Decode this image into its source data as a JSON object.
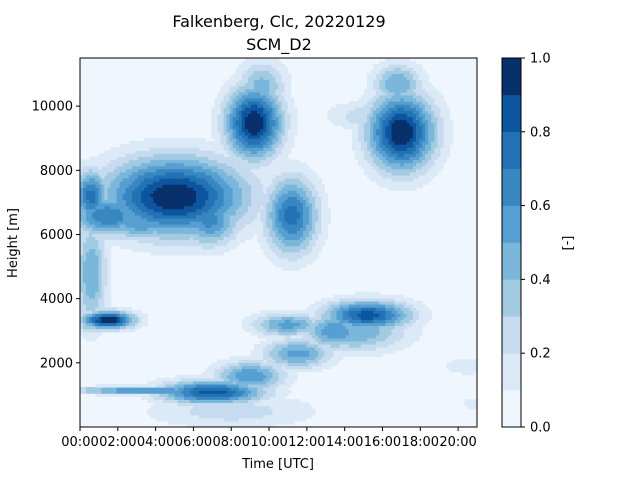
{
  "chart_data": {
    "type": "contour",
    "title": "Falkenberg, Clc, 20220129",
    "subtitle": "SCM_D2",
    "xlabel": "Time [UTC]",
    "ylabel": "Height [m]",
    "x_unit": "hour",
    "xlim": [
      0,
      21
    ],
    "ylim": [
      0,
      11500
    ],
    "x_ticks": [
      {
        "value": 0,
        "label": "00:00"
      },
      {
        "value": 2,
        "label": "02:00"
      },
      {
        "value": 4,
        "label": "04:00"
      },
      {
        "value": 6,
        "label": "06:00"
      },
      {
        "value": 8,
        "label": "08:00"
      },
      {
        "value": 10,
        "label": "10:00"
      },
      {
        "value": 12,
        "label": "12:00"
      },
      {
        "value": 14,
        "label": "14:00"
      },
      {
        "value": 16,
        "label": "16:00"
      },
      {
        "value": 18,
        "label": "18:00"
      },
      {
        "value": 20,
        "label": "20:00"
      }
    ],
    "y_ticks": [
      {
        "value": 2000,
        "label": "2000"
      },
      {
        "value": 4000,
        "label": "4000"
      },
      {
        "value": 6000,
        "label": "6000"
      },
      {
        "value": 8000,
        "label": "8000"
      },
      {
        "value": 10000,
        "label": "10000"
      }
    ],
    "colorbar": {
      "label": "[-]",
      "range": [
        0,
        1
      ],
      "levels": [
        0.0,
        0.1,
        0.2,
        0.3,
        0.4,
        0.5,
        0.6,
        0.7,
        0.8,
        0.9,
        1.0
      ],
      "colors": [
        "#f0f6fd",
        "#dce9f6",
        "#c6dbef",
        "#a2cbe2",
        "#7bb6db",
        "#569fd2",
        "#3887c0",
        "#2272b5",
        "#0c56a0",
        "#08306b"
      ],
      "ticks": [
        {
          "value": 0.0,
          "label": "0.0"
        },
        {
          "value": 0.2,
          "label": "0.2"
        },
        {
          "value": 0.4,
          "label": "0.4"
        },
        {
          "value": 0.6,
          "label": "0.6"
        },
        {
          "value": 0.8,
          "label": "0.8"
        },
        {
          "value": 1.0,
          "label": "1.0"
        }
      ]
    },
    "features": [
      {
        "kind": "blob",
        "t": 5.0,
        "z": 7200,
        "rt": 4.0,
        "rz": 1300,
        "peak": 1.0
      },
      {
        "kind": "blob",
        "t": 0.6,
        "z": 7200,
        "rt": 1.0,
        "rz": 900,
        "peak": 0.75
      },
      {
        "kind": "blob",
        "t": 1.5,
        "z": 6600,
        "rt": 2.2,
        "rz": 700,
        "peak": 0.7
      },
      {
        "kind": "blob",
        "t": 3.2,
        "z": 6400,
        "rt": 2.2,
        "rz": 600,
        "peak": 0.6
      },
      {
        "kind": "blob",
        "t": 6.8,
        "z": 6500,
        "rt": 1.8,
        "rz": 900,
        "peak": 0.65
      },
      {
        "kind": "blob",
        "t": 9.2,
        "z": 9500,
        "rt": 1.6,
        "rz": 1200,
        "peak": 1.0
      },
      {
        "kind": "blob",
        "t": 9.6,
        "z": 10600,
        "rt": 1.4,
        "rz": 900,
        "peak": 0.45
      },
      {
        "kind": "blob",
        "t": 11.2,
        "z": 6600,
        "rt": 1.5,
        "rz": 1300,
        "peak": 0.75
      },
      {
        "kind": "blob",
        "t": 17.0,
        "z": 9200,
        "rt": 1.9,
        "rz": 1300,
        "peak": 1.0
      },
      {
        "kind": "blob",
        "t": 16.8,
        "z": 10700,
        "rt": 1.4,
        "rz": 700,
        "peak": 0.5
      },
      {
        "kind": "blob",
        "t": 15.5,
        "z": 9700,
        "rt": 2.5,
        "rz": 500,
        "peak": 0.3
      },
      {
        "kind": "blob",
        "t": 0.6,
        "z": 4800,
        "rt": 0.9,
        "rz": 1800,
        "peak": 0.5
      },
      {
        "kind": "blob",
        "t": 1.5,
        "z": 3350,
        "rt": 1.5,
        "rz": 300,
        "peak": 1.0
      },
      {
        "kind": "blob",
        "t": 0.5,
        "z": 3300,
        "rt": 0.6,
        "rz": 400,
        "peak": 0.5
      },
      {
        "kind": "blob",
        "t": 11.0,
        "z": 3200,
        "rt": 2.0,
        "rz": 400,
        "peak": 0.55
      },
      {
        "kind": "blob",
        "t": 15.2,
        "z": 3500,
        "rt": 2.5,
        "rz": 500,
        "peak": 0.85
      },
      {
        "kind": "blob",
        "t": 14.5,
        "z": 3000,
        "rt": 3.0,
        "rz": 700,
        "peak": 0.5
      },
      {
        "kind": "blob",
        "t": 3.5,
        "z": 1150,
        "rt": 4.0,
        "rz": 130,
        "peak": 0.7
      },
      {
        "kind": "blob",
        "t": 7.0,
        "z": 1100,
        "rt": 3.0,
        "rz": 400,
        "peak": 0.85
      },
      {
        "kind": "blob",
        "t": 9.0,
        "z": 1600,
        "rt": 2.0,
        "rz": 500,
        "peak": 0.6
      },
      {
        "kind": "blob",
        "t": 11.5,
        "z": 2300,
        "rt": 2.0,
        "rz": 500,
        "peak": 0.55
      },
      {
        "kind": "blob",
        "t": 13.5,
        "z": 3000,
        "rt": 1.8,
        "rz": 600,
        "peak": 0.6
      },
      {
        "kind": "blob",
        "t": 8.0,
        "z": 500,
        "rt": 5.0,
        "rz": 600,
        "peak": 0.25
      },
      {
        "kind": "blob",
        "t": 20.5,
        "z": 1900,
        "rt": 1.5,
        "rz": 300,
        "peak": 0.2
      },
      {
        "kind": "blob",
        "t": 20.8,
        "z": 750,
        "rt": 0.6,
        "rz": 200,
        "peak": 0.2
      }
    ],
    "grid": false,
    "legend": "none"
  }
}
